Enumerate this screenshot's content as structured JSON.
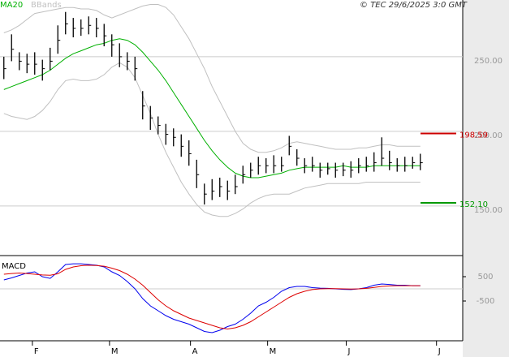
{
  "header": {
    "copyright": "© TEC 29/6/2025 3:0 GMT"
  },
  "chart_data": [
    {
      "type": "ohlc",
      "xlim": [
        -0.5,
        59.5
      ],
      "ylim": [
        116.8,
        288
      ],
      "yticks": [
        {
          "value": 250,
          "label": "250.00"
        },
        {
          "value": 200,
          "label": "200.00"
        },
        {
          "value": 150,
          "label": "150.00"
        }
      ],
      "grid": true,
      "color": "#000000",
      "high": [
        250,
        265,
        253,
        252,
        253,
        248,
        256,
        271,
        280,
        276,
        275,
        277,
        276,
        272,
        265,
        259,
        253,
        250,
        227,
        217,
        210,
        205,
        202,
        198,
        194,
        181,
        165,
        168,
        169,
        167,
        171,
        177,
        179,
        183,
        182,
        184,
        183,
        197,
        188,
        182,
        183,
        179,
        179,
        179,
        179,
        180,
        182,
        183,
        186,
        196,
        187,
        182,
        183,
        183,
        185
      ],
      "low": [
        235,
        247,
        241,
        239,
        238,
        234,
        241,
        252,
        265,
        263,
        264,
        265,
        263,
        257,
        250,
        243,
        241,
        234,
        208,
        201,
        198,
        191,
        190,
        183,
        177,
        162,
        151,
        154,
        156,
        154,
        158,
        165,
        169,
        171,
        172,
        172,
        173,
        184,
        177,
        172,
        173,
        169,
        171,
        169,
        170,
        169,
        172,
        173,
        173,
        177,
        174,
        173,
        173,
        175,
        174
      ],
      "close": [
        242,
        255,
        247,
        245,
        245,
        242,
        247,
        261,
        272,
        269,
        269,
        271,
        269,
        264,
        258,
        250,
        247,
        242,
        217,
        209,
        204,
        198,
        196,
        190,
        185,
        171,
        158,
        160,
        163,
        160,
        163,
        171,
        174,
        177,
        177,
        177,
        177,
        190,
        182,
        177,
        177,
        174,
        175,
        174,
        174,
        174,
        177,
        177,
        179,
        182,
        179,
        177,
        177,
        179,
        179
      ],
      "series": [
        {
          "name": "MA20",
          "color": "#00b000",
          "values": [
            228,
            230,
            232,
            234,
            236,
            238,
            241,
            245,
            249,
            252,
            254,
            256,
            258,
            259,
            261,
            262,
            261,
            258,
            253,
            247,
            241,
            234,
            226,
            218,
            210,
            202,
            194,
            187,
            181,
            176,
            172,
            170,
            169,
            169,
            170,
            171,
            172,
            174,
            175,
            176,
            176,
            176,
            176,
            176,
            177,
            176,
            176,
            176,
            177,
            177,
            177,
            177,
            177,
            177,
            177
          ]
        },
        {
          "name": "BBands",
          "color": "#c0c0c0",
          "values": [
            266,
            268,
            271,
            275,
            279,
            280,
            281,
            282,
            283,
            283,
            282,
            282,
            281,
            278,
            276,
            278,
            280,
            282,
            284,
            285,
            285,
            283,
            278,
            270,
            262,
            252,
            242,
            230,
            220,
            210,
            200,
            192,
            188,
            186,
            186,
            187,
            189,
            192,
            193,
            192,
            191,
            190,
            189,
            188,
            188,
            188,
            189,
            189,
            190,
            191,
            191,
            190,
            190,
            190,
            190
          ],
          "lower": [
            212,
            210,
            209,
            208,
            210,
            214,
            220,
            228,
            234,
            235,
            234,
            234,
            235,
            238,
            243,
            246,
            243,
            236,
            224,
            212,
            198,
            186,
            176,
            166,
            158,
            151,
            146,
            144,
            143,
            143,
            145,
            148,
            152,
            155,
            157,
            158,
            158,
            158,
            160,
            162,
            163,
            164,
            165,
            165,
            165,
            165,
            165,
            166,
            166,
            166,
            166,
            166,
            166,
            166,
            166
          ]
        }
      ],
      "levels": [
        {
          "value": 198.59,
          "label": "198.59",
          "color": "#cc0000"
        },
        {
          "value": 152.1,
          "label": "152.10",
          "color": "#009900"
        }
      ]
    },
    {
      "type": "line",
      "title": "MACD",
      "xlim": [
        -0.5,
        59.5
      ],
      "ylim": [
        -2133,
        1267
      ],
      "yticks": [
        500,
        -500
      ],
      "xticks": [
        {
          "value": 3.7,
          "label": "F"
        },
        {
          "value": 13.7,
          "label": "M"
        },
        {
          "value": 24.2,
          "label": "A"
        },
        {
          "value": 34.2,
          "label": "M"
        },
        {
          "value": 44.4,
          "label": "J"
        },
        {
          "value": 56.1,
          "label": "J"
        }
      ],
      "series": [
        {
          "color": "#0000ee",
          "values": [
            367,
            450,
            550,
            650,
            700,
            500,
            430,
            700,
            1000,
            1030,
            1030,
            1000,
            970,
            900,
            700,
            550,
            300,
            0,
            -400,
            -700,
            -900,
            -1100,
            -1250,
            -1350,
            -1450,
            -1600,
            -1750,
            -1800,
            -1700,
            -1550,
            -1450,
            -1250,
            -1000,
            -700,
            -550,
            -350,
            -100,
            50,
            100,
            100,
            50,
            30,
            20,
            0,
            -20,
            -30,
            0,
            50,
            150,
            200,
            180,
            150,
            150,
            130,
            130
          ]
        },
        {
          "color": "#dd0000",
          "values": [
            600,
            630,
            650,
            630,
            600,
            570,
            560,
            620,
            800,
            900,
            950,
            970,
            960,
            930,
            850,
            750,
            600,
            400,
            150,
            -150,
            -450,
            -700,
            -900,
            -1050,
            -1200,
            -1300,
            -1400,
            -1500,
            -1600,
            -1650,
            -1600,
            -1500,
            -1350,
            -1150,
            -950,
            -750,
            -550,
            -350,
            -200,
            -100,
            -30,
            0,
            10,
            10,
            0,
            -10,
            0,
            20,
            60,
            100,
            120,
            130,
            130,
            130,
            130
          ]
        }
      ]
    }
  ]
}
